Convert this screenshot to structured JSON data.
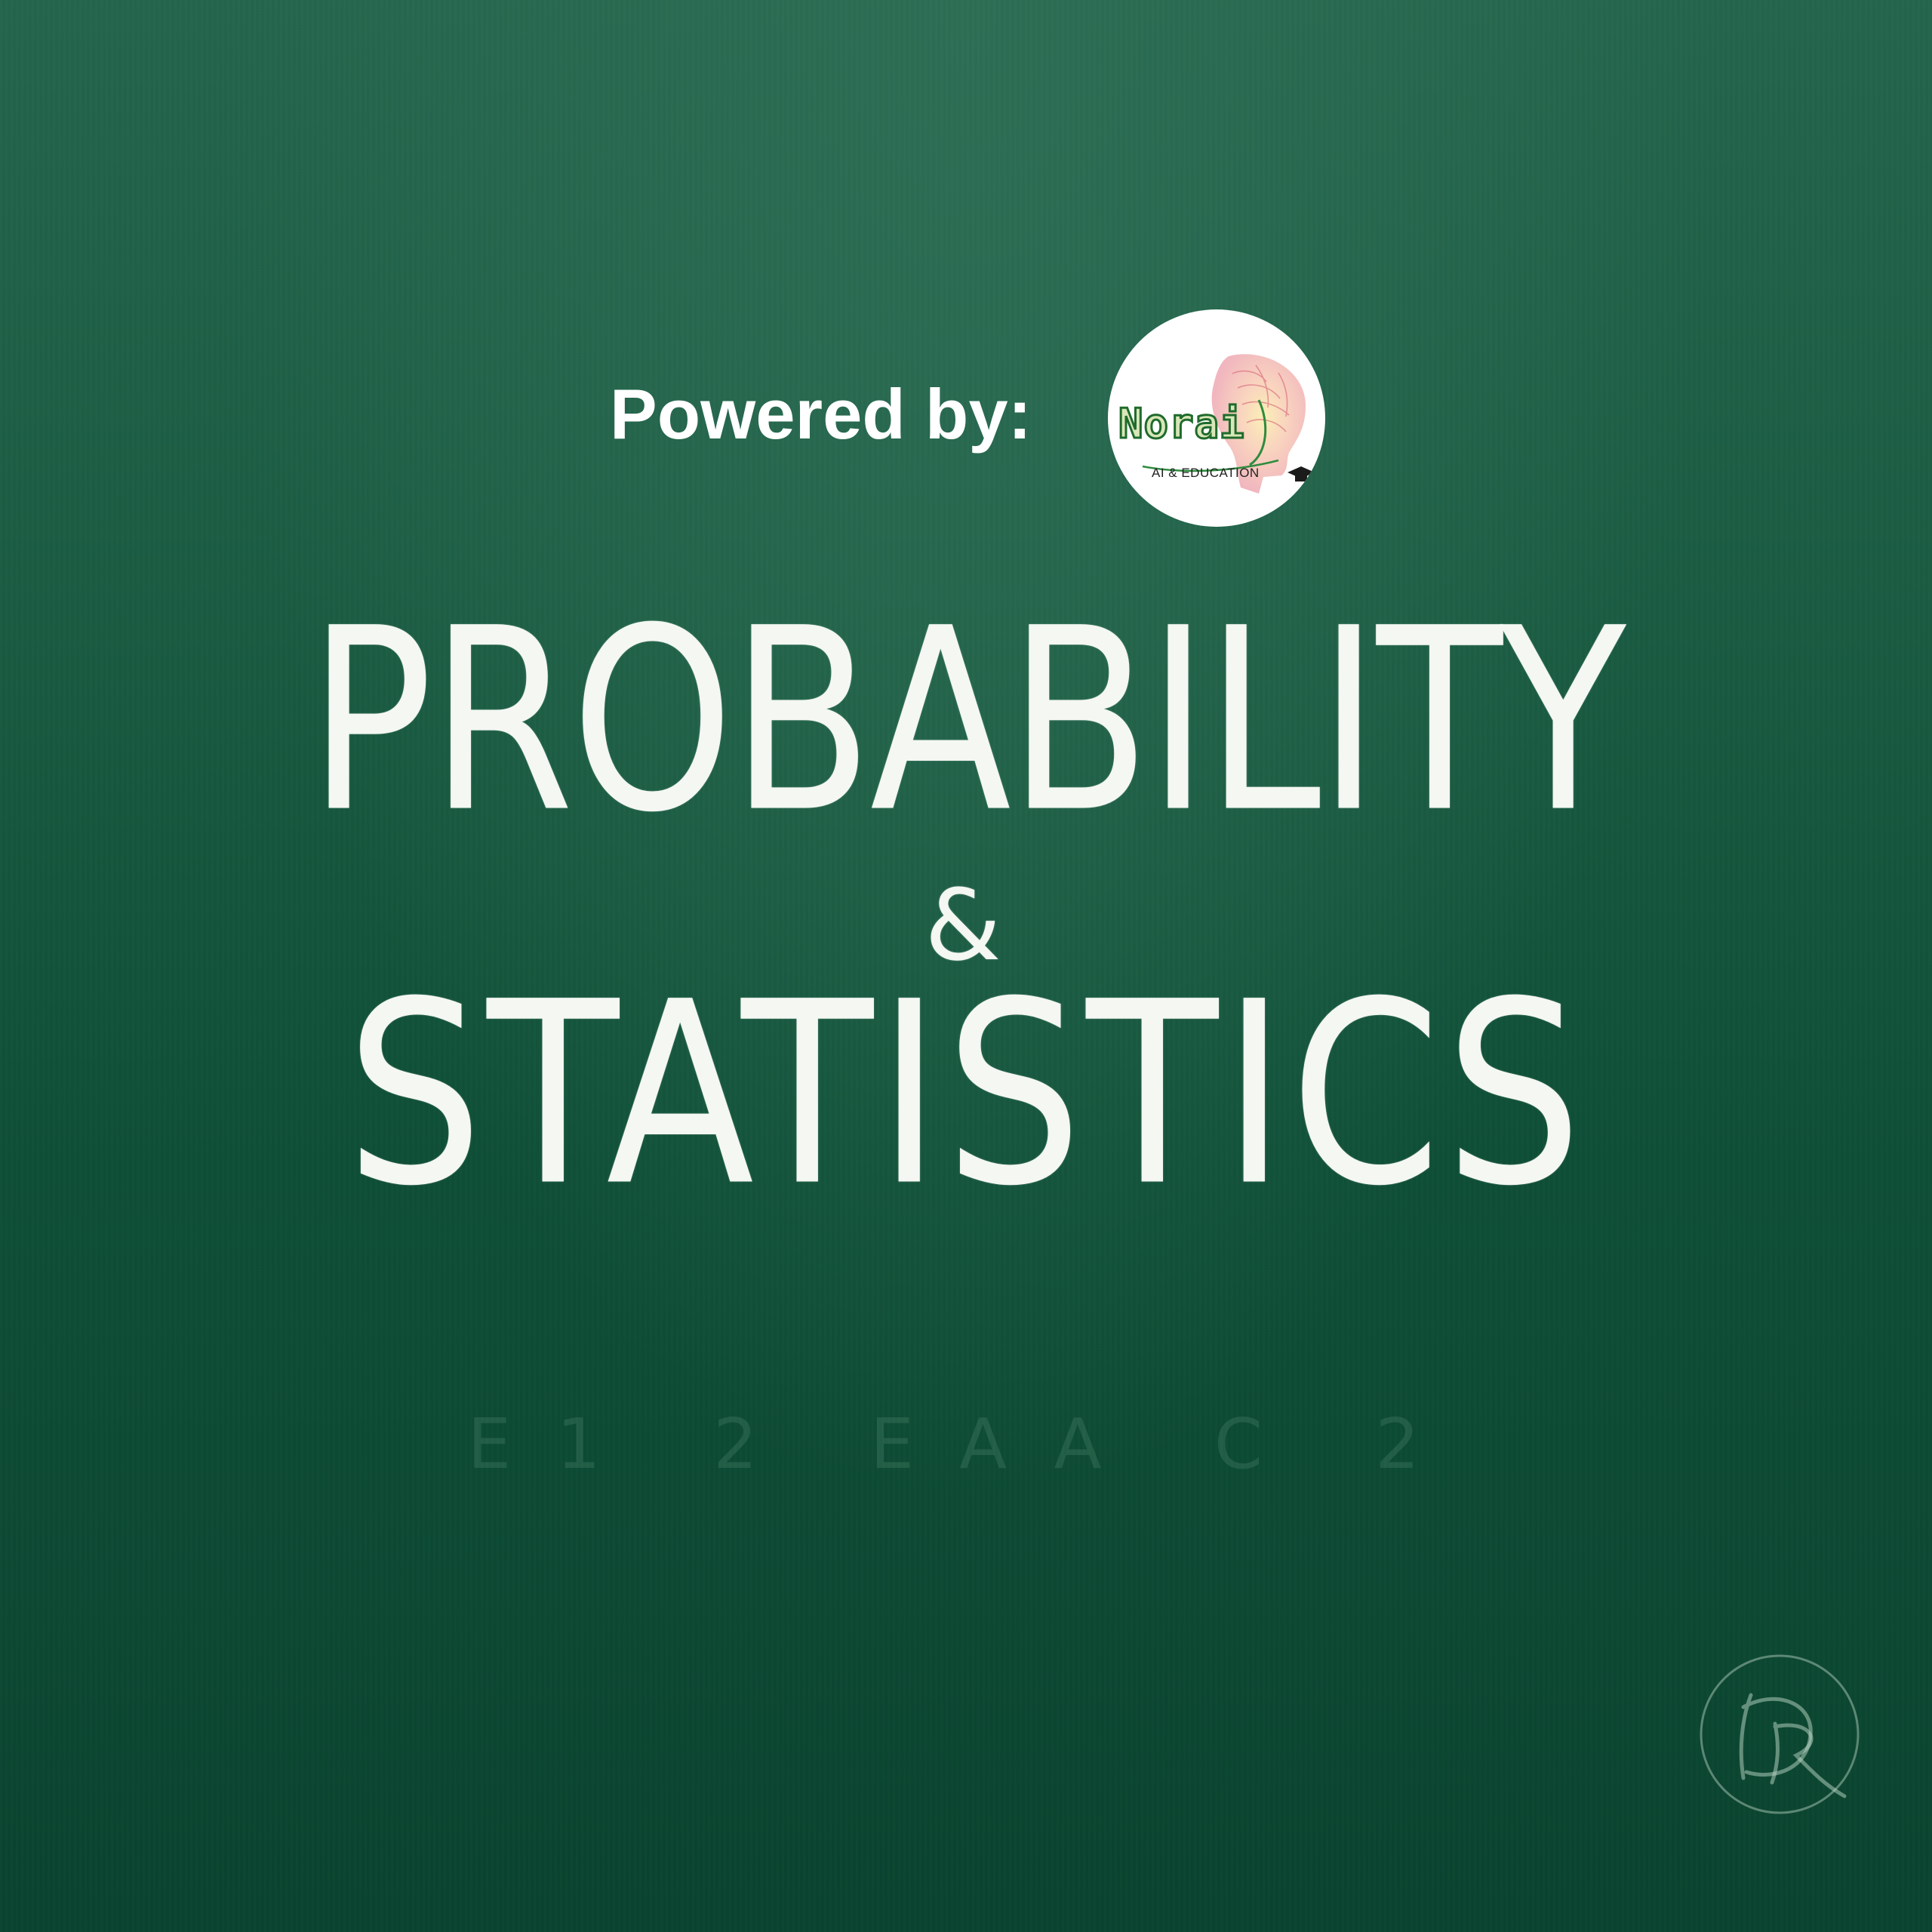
{
  "background": {
    "board_color": "#1a5c43",
    "chalk_color": "#f4f7f2"
  },
  "powered_by": {
    "label": "Powered by:",
    "logo": {
      "name": "Norai",
      "tagline": "AI & EDUCATION",
      "icon": "brain-graduation-cap-icon"
    }
  },
  "title": {
    "line1": "PROBABILITY",
    "ampersand": "&",
    "line2": "STATISTICS"
  },
  "faint_chalk_text": "E1 2 EAA C 2",
  "watermark": {
    "monogram_text": "DR",
    "icon": "dr-monogram-icon"
  }
}
